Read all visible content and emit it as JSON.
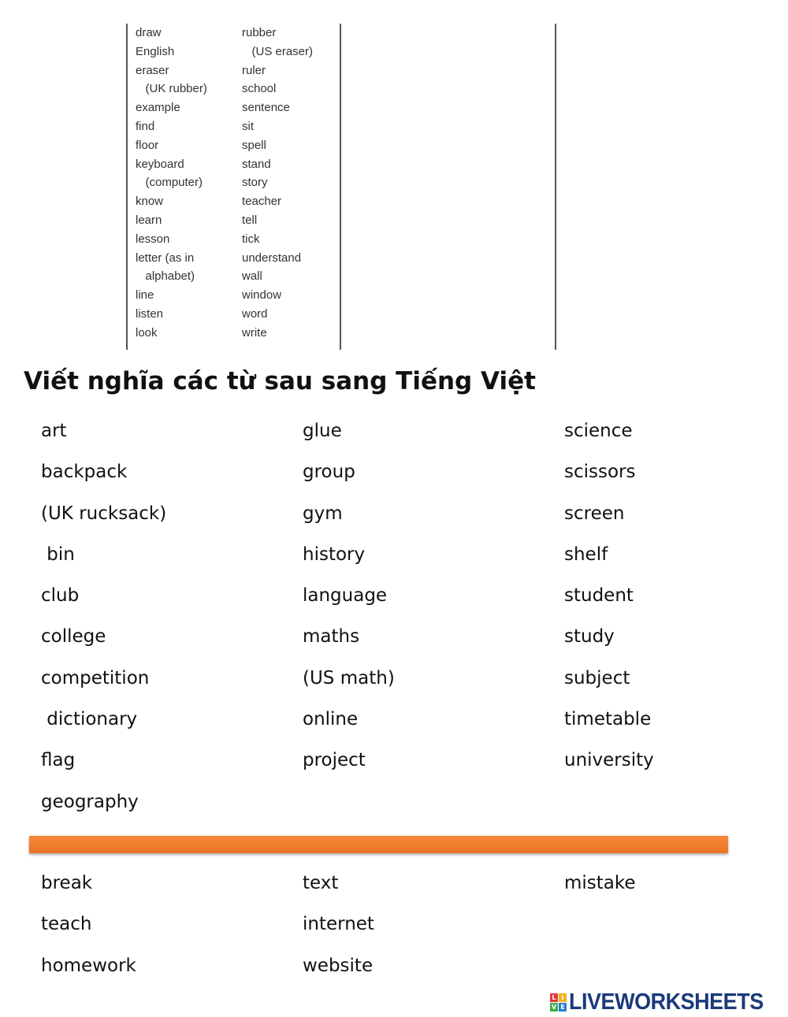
{
  "word_list_image": {
    "left_column": [
      "draw",
      "English",
      "eraser",
      "   (UK rubber)",
      "example",
      "find",
      "floor",
      "keyboard",
      "   (computer)",
      "know",
      "learn",
      "lesson",
      "letter (as in",
      "   alphabet)",
      "line",
      "listen",
      "look"
    ],
    "right_column": [
      "rubber",
      "   (US eraser)",
      "ruler",
      "school",
      "sentence",
      "sit",
      "spell",
      "stand",
      "story",
      "teacher",
      "tell",
      "tick",
      "understand",
      "wall",
      "window",
      "word",
      "write"
    ]
  },
  "title": "Viết nghĩa các từ sau sang Tiếng Việt",
  "section1": {
    "col1": [
      "art",
      "backpack",
      "(UK rucksack)",
      " bin",
      "club",
      "college",
      "competition",
      " dictionary",
      "flag",
      "geography"
    ],
    "col2": [
      "glue",
      "group",
      "gym",
      "history",
      "language",
      "maths",
      "(US math)",
      "online",
      "project"
    ],
    "col3": [
      "science",
      "scissors",
      "screen",
      "shelf",
      "student",
      "study",
      "subject",
      "timetable",
      "university"
    ]
  },
  "divider_color": "#ef7a2a",
  "section2": {
    "col1": [
      "break",
      "teach",
      "homework"
    ],
    "col2": [
      "text",
      "internet",
      "website"
    ],
    "col3": [
      "mistake"
    ]
  },
  "logo": {
    "text": "LIVEWORKSHEETS",
    "badge": [
      "L",
      "I",
      "V",
      "E"
    ]
  }
}
